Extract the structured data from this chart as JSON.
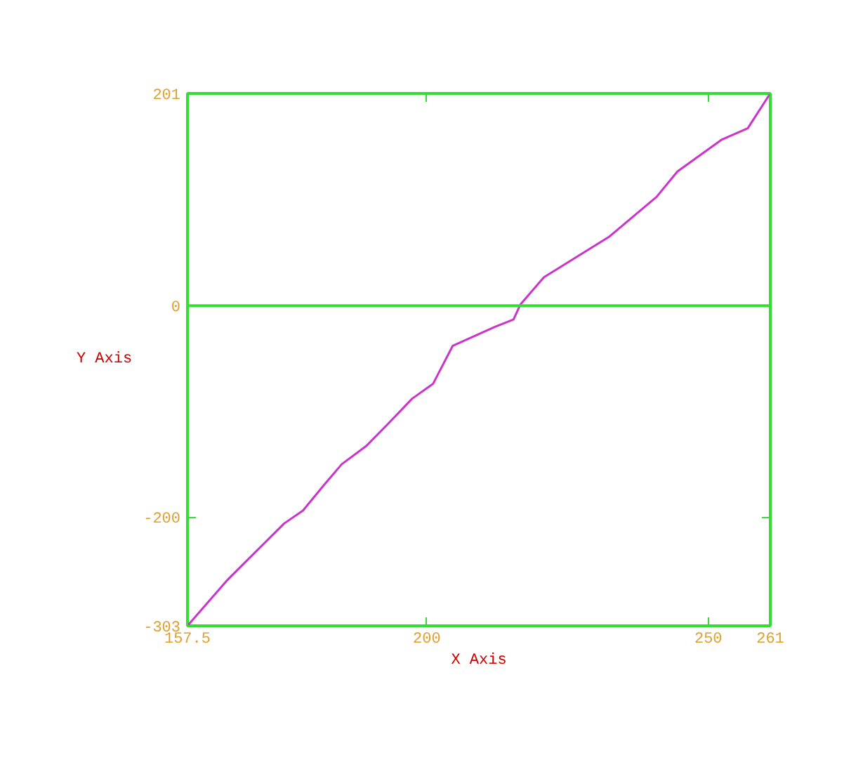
{
  "chart_data": {
    "type": "line",
    "xlabel": "X Axis",
    "ylabel": "Y Axis",
    "x": [
      157.5,
      164.7,
      174.7,
      178.0,
      181.7,
      184.9,
      189.2,
      192.9,
      197.4,
      201.1,
      204.6,
      212.1,
      215.4,
      216.6,
      220.8,
      232.3,
      240.8,
      244.5,
      252.3,
      257.0,
      261
    ],
    "series": [
      {
        "color": "#cc33cc",
        "values": [
          -303,
          -259,
          -206,
          -194,
          -170,
          -150,
          -133,
          -113,
          -88,
          -74,
          -38,
          -20,
          -13,
          1,
          27,
          65,
          103,
          127,
          157,
          168,
          201
        ]
      }
    ],
    "xlim": [
      157.5,
      261
    ],
    "ylim": [
      -303,
      201
    ],
    "xticks": [
      157.5,
      200,
      250,
      261
    ],
    "yticks": [
      -303,
      -200,
      0,
      201
    ],
    "ref_lines": [
      {
        "axis": "y",
        "value": 0,
        "color": "#33dd33"
      }
    ],
    "grid": false,
    "marker": "none",
    "line_style": "solid"
  }
}
